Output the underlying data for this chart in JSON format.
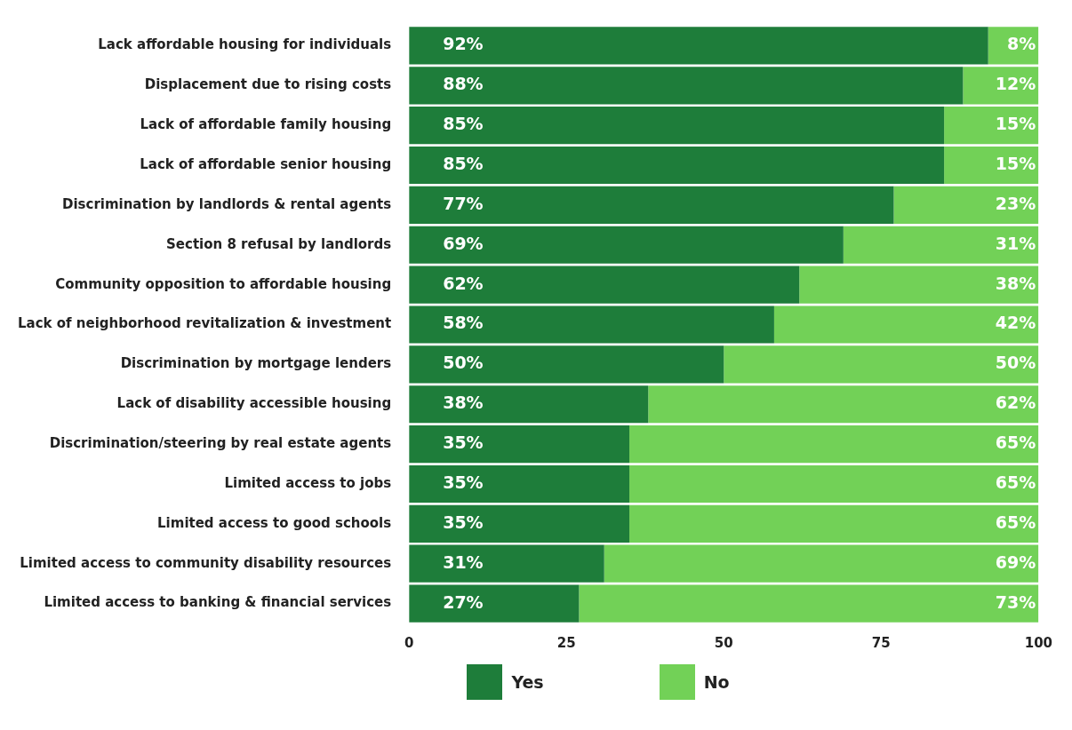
{
  "chart_data": {
    "type": "bar",
    "orientation": "horizontal",
    "stacked": true,
    "legend": "bottom",
    "grid": false,
    "categories": [
      "Lack affordable housing for individuals",
      "Displacement due to rising costs",
      "Lack of affordable family housing",
      "Lack of affordable senior housing",
      "Discrimination by landlords & rental agents",
      "Section 8 refusal by landlords",
      "Community opposition to affordable housing",
      "Lack of neighborhood revitalization & investment",
      "Discrimination by mortgage lenders",
      "Lack of disability accessible housing",
      "Discrimination/steering by real estate agents",
      "Limited access to jobs",
      "Limited access to good schools",
      "Limited access to community disability resources",
      "Limited access to banking & financial services"
    ],
    "series": [
      {
        "name": "Yes",
        "color": "#1e7d3a",
        "values": [
          92,
          88,
          85,
          85,
          77,
          69,
          62,
          58,
          50,
          38,
          35,
          35,
          35,
          31,
          27
        ],
        "value_labels": [
          "92%",
          "88%",
          "85%",
          "85%",
          "77%",
          "69%",
          "62%",
          "58%",
          "50%",
          "38%",
          "35%",
          "35%",
          "35%",
          "31%",
          "27%"
        ]
      },
      {
        "name": "No",
        "color": "#72d157",
        "values": [
          8,
          12,
          15,
          15,
          23,
          31,
          38,
          42,
          50,
          62,
          65,
          65,
          65,
          69,
          73
        ],
        "value_labels": [
          "8%",
          "12%",
          "15%",
          "15%",
          "23%",
          "31%",
          "38%",
          "42%",
          "50%",
          "62%",
          "65%",
          "65%",
          "65%",
          "69%",
          "73%"
        ]
      }
    ],
    "xlim": [
      0,
      100
    ],
    "xticks": [
      0,
      25,
      50,
      75,
      100
    ]
  }
}
